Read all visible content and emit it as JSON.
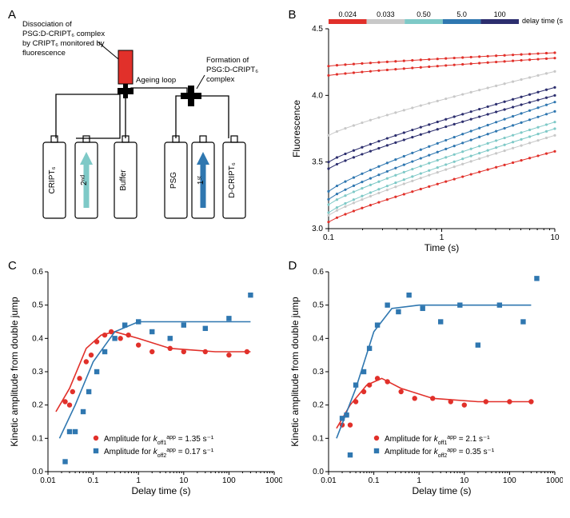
{
  "panelA": {
    "label": "A",
    "annotations": {
      "dissoc": "Dissociation of\nPSG:D-CRIPT₆ complex\nby CRIPT₆ monitored by\nfluorescence",
      "ageing": "Ageing loop",
      "formation": "Formation of\nPSG:D-CRIPT₆\ncomplex"
    },
    "syringes": [
      "CRIPT₆",
      "2ⁿᵈ",
      "Buffer",
      "PSG",
      "1ˢᵗ",
      "D-CRIPT₆"
    ],
    "arrowColors": {
      "second": "#7ec9c7",
      "first": "#2f77b0"
    },
    "cuvetteColor": "#e1302a"
  },
  "panelB": {
    "label": "B",
    "delayLegend": {
      "title": "delay time (s)",
      "values": [
        "0.024",
        "0.033",
        "0.50",
        "5.0",
        "100"
      ],
      "colors": [
        "#e1302a",
        "#c8c8c8",
        "#7ec9c7",
        "#2f77b0",
        "#2c2e6e"
      ]
    },
    "xlabel": "Time (s)",
    "ylabel": "Fluorescence",
    "xlim": [
      0.1,
      10
    ],
    "ylim": [
      3.0,
      4.5
    ],
    "yticks": [
      3.0,
      3.5,
      4.0,
      4.5
    ],
    "xticks": [
      0.1,
      1,
      10
    ],
    "xscale": "log",
    "series": [
      {
        "color": "#e1302a",
        "y0": 4.22,
        "y1": 4.32,
        "offset": 0
      },
      {
        "color": "#e1302a",
        "y0": 4.15,
        "y1": 4.28,
        "offset": 0
      },
      {
        "color": "#c8c8c8",
        "y0": 3.7,
        "y1": 4.18,
        "offset": 0
      },
      {
        "color": "#2c2e6e",
        "y0": 3.5,
        "y1": 4.06,
        "offset": 0
      },
      {
        "color": "#2c2e6e",
        "y0": 3.45,
        "y1": 4.0,
        "offset": 0
      },
      {
        "color": "#2f77b0",
        "y0": 3.28,
        "y1": 3.95,
        "offset": 0
      },
      {
        "color": "#2f77b0",
        "y0": 3.22,
        "y1": 3.88,
        "offset": 0
      },
      {
        "color": "#7ec9c7",
        "y0": 3.18,
        "y1": 3.8,
        "offset": 0
      },
      {
        "color": "#7ec9c7",
        "y0": 3.12,
        "y1": 3.75,
        "offset": 0
      },
      {
        "color": "#c8c8c8",
        "y0": 3.1,
        "y1": 3.7,
        "offset": 0
      },
      {
        "color": "#e1302a",
        "y0": 3.05,
        "y1": 3.58,
        "offset": 0
      }
    ],
    "nDots": 28
  },
  "panelC": {
    "label": "C",
    "xlabel": "Delay time (s)",
    "ylabel": "Kinetic amplitude from double jump",
    "xlim": [
      0.01,
      1000
    ],
    "ylim": [
      0,
      0.6
    ],
    "yticks": [
      0,
      0.1,
      0.2,
      0.3,
      0.4,
      0.5,
      0.6
    ],
    "xticks": [
      0.01,
      0.1,
      1,
      10,
      100,
      1000
    ],
    "xscale": "log",
    "series": [
      {
        "name": "k_off1",
        "color": "#e1302a",
        "marker": "circle",
        "legend": "Amplitude for k_off1^app = 1.35 s⁻¹",
        "points": [
          [
            0.024,
            0.21
          ],
          [
            0.03,
            0.2
          ],
          [
            0.035,
            0.24
          ],
          [
            0.05,
            0.28
          ],
          [
            0.07,
            0.33
          ],
          [
            0.09,
            0.35
          ],
          [
            0.12,
            0.39
          ],
          [
            0.18,
            0.41
          ],
          [
            0.25,
            0.42
          ],
          [
            0.4,
            0.4
          ],
          [
            0.6,
            0.41
          ],
          [
            1.0,
            0.38
          ],
          [
            2,
            0.36
          ],
          [
            5,
            0.37
          ],
          [
            10,
            0.36
          ],
          [
            30,
            0.36
          ],
          [
            100,
            0.35
          ],
          [
            250,
            0.36
          ]
        ],
        "fit": [
          [
            0.015,
            0.18
          ],
          [
            0.03,
            0.25
          ],
          [
            0.07,
            0.37
          ],
          [
            0.15,
            0.41
          ],
          [
            0.3,
            0.42
          ],
          [
            1,
            0.4
          ],
          [
            5,
            0.37
          ],
          [
            50,
            0.36
          ],
          [
            300,
            0.36
          ]
        ]
      },
      {
        "name": "k_off2",
        "color": "#2f77b0",
        "marker": "square",
        "legend": "Amplitude for k_off2^app = 0.17 s⁻¹",
        "points": [
          [
            0.024,
            0.03
          ],
          [
            0.03,
            0.12
          ],
          [
            0.04,
            0.12
          ],
          [
            0.06,
            0.18
          ],
          [
            0.08,
            0.24
          ],
          [
            0.12,
            0.3
          ],
          [
            0.18,
            0.36
          ],
          [
            0.3,
            0.4
          ],
          [
            0.5,
            0.44
          ],
          [
            1,
            0.45
          ],
          [
            2,
            0.42
          ],
          [
            5,
            0.4
          ],
          [
            10,
            0.44
          ],
          [
            30,
            0.43
          ],
          [
            100,
            0.46
          ],
          [
            300,
            0.53
          ]
        ],
        "fit": [
          [
            0.018,
            0.1
          ],
          [
            0.04,
            0.2
          ],
          [
            0.1,
            0.33
          ],
          [
            0.3,
            0.42
          ],
          [
            1,
            0.45
          ],
          [
            10,
            0.45
          ],
          [
            300,
            0.45
          ]
        ]
      }
    ]
  },
  "panelD": {
    "label": "D",
    "xlabel": "Delay time (s)",
    "ylabel": "Kinetic amplitude from double jump",
    "xlim": [
      0.01,
      1000
    ],
    "ylim": [
      0,
      0.6
    ],
    "yticks": [
      0,
      0.1,
      0.2,
      0.3,
      0.4,
      0.5,
      0.6
    ],
    "xticks": [
      0.01,
      0.1,
      1,
      10,
      100,
      1000
    ],
    "xscale": "log",
    "series": [
      {
        "name": "k_off1",
        "color": "#e1302a",
        "marker": "circle",
        "legend": "Amplitude for k_off1^app = 2.1 s⁻¹",
        "points": [
          [
            0.02,
            0.14
          ],
          [
            0.025,
            0.17
          ],
          [
            0.03,
            0.14
          ],
          [
            0.04,
            0.21
          ],
          [
            0.06,
            0.24
          ],
          [
            0.08,
            0.26
          ],
          [
            0.12,
            0.28
          ],
          [
            0.2,
            0.27
          ],
          [
            0.4,
            0.24
          ],
          [
            0.8,
            0.22
          ],
          [
            2,
            0.22
          ],
          [
            5,
            0.21
          ],
          [
            10,
            0.2
          ],
          [
            30,
            0.21
          ],
          [
            100,
            0.21
          ],
          [
            300,
            0.21
          ]
        ],
        "fit": [
          [
            0.015,
            0.13
          ],
          [
            0.03,
            0.2
          ],
          [
            0.07,
            0.26
          ],
          [
            0.15,
            0.28
          ],
          [
            0.4,
            0.25
          ],
          [
            2,
            0.22
          ],
          [
            20,
            0.21
          ],
          [
            300,
            0.21
          ]
        ]
      },
      {
        "name": "k_off2",
        "color": "#2f77b0",
        "marker": "square",
        "legend": "Amplitude for k_off2^app = 0.35 s⁻¹",
        "points": [
          [
            0.02,
            0.16
          ],
          [
            0.025,
            0.17
          ],
          [
            0.03,
            0.05
          ],
          [
            0.04,
            0.26
          ],
          [
            0.06,
            0.3
          ],
          [
            0.08,
            0.37
          ],
          [
            0.12,
            0.44
          ],
          [
            0.2,
            0.5
          ],
          [
            0.35,
            0.48
          ],
          [
            0.6,
            0.53
          ],
          [
            1.2,
            0.49
          ],
          [
            3,
            0.45
          ],
          [
            8,
            0.5
          ],
          [
            20,
            0.38
          ],
          [
            60,
            0.5
          ],
          [
            200,
            0.45
          ],
          [
            400,
            0.58
          ]
        ],
        "fit": [
          [
            0.015,
            0.1
          ],
          [
            0.04,
            0.25
          ],
          [
            0.1,
            0.42
          ],
          [
            0.25,
            0.49
          ],
          [
            1,
            0.5
          ],
          [
            10,
            0.5
          ],
          [
            300,
            0.5
          ]
        ]
      }
    ]
  },
  "colors": {
    "red": "#e1302a",
    "grey": "#c8c8c8",
    "teal": "#7ec9c7",
    "blue": "#2f77b0",
    "navy": "#2c2e6e",
    "black": "#000000"
  },
  "legendFontSize": 10,
  "markerSize": 3.2
}
